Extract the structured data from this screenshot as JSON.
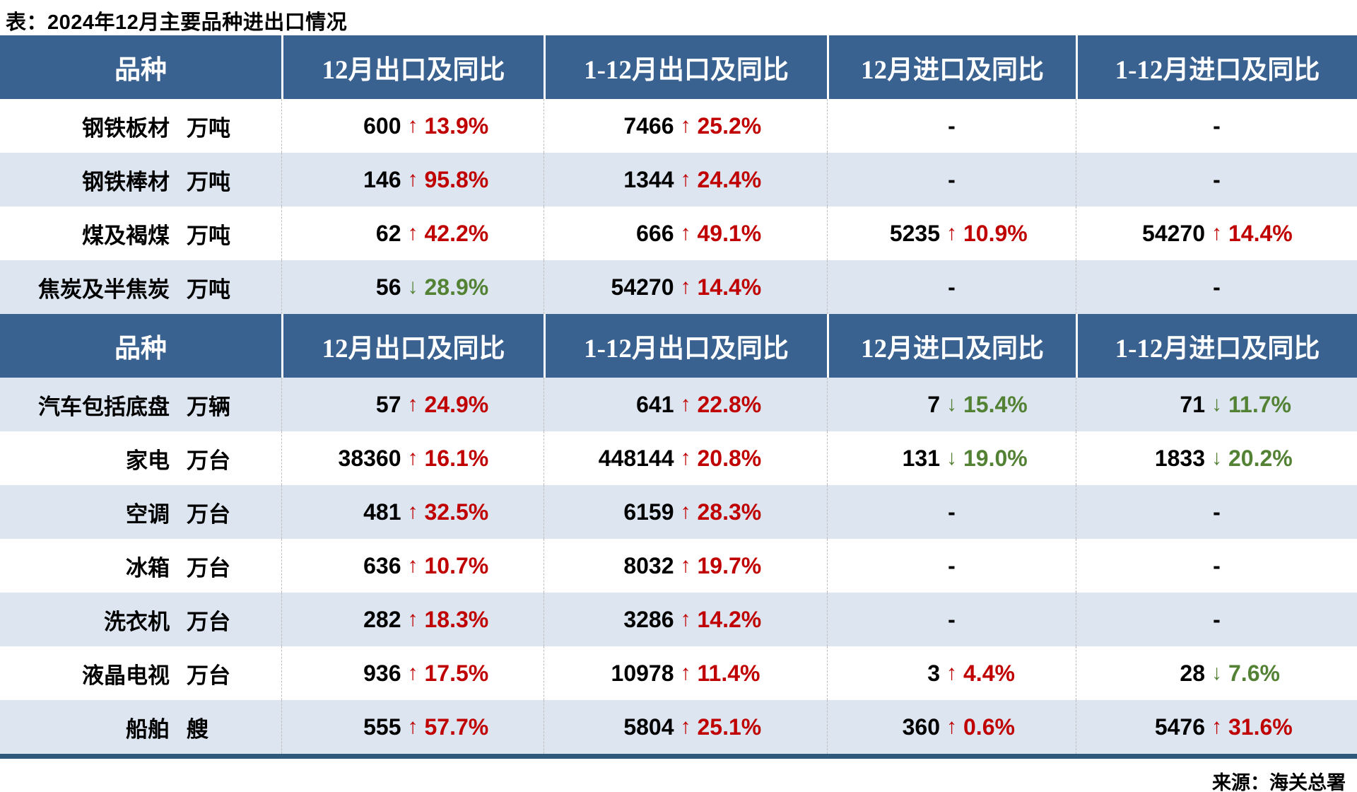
{
  "chart_data": {
    "type": "table",
    "title": "表：2024年12月主要品种进出口情况",
    "source": "来源：海关总署",
    "headers": [
      "品种",
      "12月出口及同比",
      "1-12月出口及同比",
      "12月进口及同比",
      "1-12月进口及同比"
    ],
    "column_keys": [
      "product",
      "dec-export",
      "ytd-export",
      "dec-import",
      "ytd-import"
    ],
    "empty_placeholder": "-",
    "arrow_glyphs": {
      "up": "↑",
      "down": "↓"
    },
    "colors": {
      "header_bg": "#3A6290",
      "header_text": "#FFFFFF",
      "row_white": "#FFFFFF",
      "row_tint": "#DCE5F0",
      "up_red": "#C00000",
      "down_green": "#548235",
      "bottom_rule": "#2E587C",
      "divider_gray": "#BFBFBF"
    },
    "sections": [
      {
        "first_row_shade": "white",
        "rows": [
          {
            "name": "钢铁板材",
            "unit": "万吨",
            "values": [
              {
                "num": "600",
                "dir": "up",
                "pct": "13.9%"
              },
              {
                "num": "7466",
                "dir": "up",
                "pct": "25.2%"
              },
              null,
              null
            ]
          },
          {
            "name": "钢铁棒材",
            "unit": "万吨",
            "values": [
              {
                "num": "146",
                "dir": "up",
                "pct": "95.8%"
              },
              {
                "num": "1344",
                "dir": "up",
                "pct": "24.4%"
              },
              null,
              null
            ]
          },
          {
            "name": "煤及褐煤",
            "unit": "万吨",
            "values": [
              {
                "num": "62",
                "dir": "up",
                "pct": "42.2%"
              },
              {
                "num": "666",
                "dir": "up",
                "pct": "49.1%"
              },
              {
                "num": "5235",
                "dir": "up",
                "pct": "10.9%"
              },
              {
                "num": "54270",
                "dir": "up",
                "pct": "14.4%"
              }
            ]
          },
          {
            "name": "焦炭及半焦炭",
            "unit": "万吨",
            "values": [
              {
                "num": "56",
                "dir": "down",
                "pct": "28.9%"
              },
              {
                "num": "54270",
                "dir": "up",
                "pct": "14.4%"
              },
              null,
              null
            ]
          }
        ]
      },
      {
        "first_row_shade": "tint",
        "rows": [
          {
            "name": "汽车包括底盘",
            "unit": "万辆",
            "values": [
              {
                "num": "57",
                "dir": "up",
                "pct": "24.9%"
              },
              {
                "num": "641",
                "dir": "up",
                "pct": "22.8%"
              },
              {
                "num": "7",
                "dir": "down",
                "pct": "15.4%"
              },
              {
                "num": "71",
                "dir": "down",
                "pct": "11.7%"
              }
            ]
          },
          {
            "name": "家电",
            "unit": "万台",
            "values": [
              {
                "num": "38360",
                "dir": "up",
                "pct": "16.1%"
              },
              {
                "num": "448144",
                "dir": "up",
                "pct": "20.8%"
              },
              {
                "num": "131",
                "dir": "down",
                "pct": "19.0%"
              },
              {
                "num": "1833",
                "dir": "down",
                "pct": "20.2%"
              }
            ]
          },
          {
            "name": "空调",
            "unit": "万台",
            "values": [
              {
                "num": "481",
                "dir": "up",
                "pct": "32.5%"
              },
              {
                "num": "6159",
                "dir": "up",
                "pct": "28.3%"
              },
              null,
              null
            ]
          },
          {
            "name": "冰箱",
            "unit": "万台",
            "values": [
              {
                "num": "636",
                "dir": "up",
                "pct": "10.7%"
              },
              {
                "num": "8032",
                "dir": "up",
                "pct": "19.7%"
              },
              null,
              null
            ]
          },
          {
            "name": "洗衣机",
            "unit": "万台",
            "values": [
              {
                "num": "282",
                "dir": "up",
                "pct": "18.3%"
              },
              {
                "num": "3286",
                "dir": "up",
                "pct": "14.2%"
              },
              null,
              null
            ]
          },
          {
            "name": "液晶电视",
            "unit": "万台",
            "values": [
              {
                "num": "936",
                "dir": "up",
                "pct": "17.5%"
              },
              {
                "num": "10978",
                "dir": "up",
                "pct": "11.4%"
              },
              {
                "num": "3",
                "dir": "up",
                "pct": "4.4%"
              },
              {
                "num": "28",
                "dir": "down",
                "pct": "7.6%"
              }
            ]
          },
          {
            "name": "船舶",
            "unit": "艘",
            "values": [
              {
                "num": "555",
                "dir": "up",
                "pct": "57.7%"
              },
              {
                "num": "5804",
                "dir": "up",
                "pct": "25.1%"
              },
              {
                "num": "360",
                "dir": "up",
                "pct": "0.6%"
              },
              {
                "num": "5476",
                "dir": "up",
                "pct": "31.6%"
              }
            ]
          }
        ]
      }
    ]
  }
}
